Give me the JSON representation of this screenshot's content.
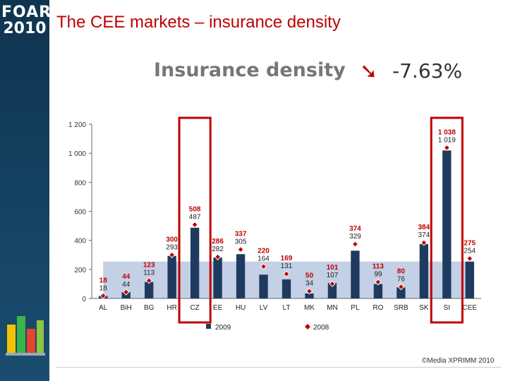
{
  "slide": {
    "title": "The CEE markets – insurance density",
    "subtitle": "Insurance density",
    "change": "-7.63%",
    "arrow_icon": "arrow-down-right-icon",
    "logo_top": "FOAR",
    "logo_bottom": "2010",
    "copyright": "©Media XPRIMM 2010"
  },
  "chart_data": {
    "type": "bar",
    "title": "",
    "xlabel": "",
    "ylabel": "",
    "ylim": [
      0,
      1200
    ],
    "yticks": [
      0,
      200,
      400,
      600,
      800,
      1000,
      1200
    ],
    "ytick_labels": [
      "0",
      "200",
      "400",
      "600",
      "800",
      "1 000",
      "1 200"
    ],
    "legend_position": "bottom",
    "categories": [
      "AL",
      "BiH",
      "BG",
      "HR",
      "CZ",
      "EE",
      "HU",
      "LV",
      "LT",
      "MK",
      "MN",
      "PL",
      "RO",
      "SRB",
      "SK",
      "SI",
      "CEE"
    ],
    "series": [
      {
        "name": "2009",
        "type": "bar",
        "color": "#1f3a5f",
        "values": [
          18,
          44,
          113,
          293,
          487,
          282,
          305,
          164,
          131,
          34,
          107,
          329,
          99,
          76,
          374,
          1019,
          254
        ],
        "labels": [
          "18",
          "44",
          "113",
          "293",
          "487",
          "282",
          "305",
          "164",
          "131",
          "34",
          "107",
          "329",
          "99",
          "76",
          "374",
          "1 019",
          "254"
        ]
      },
      {
        "name": "2008",
        "type": "marker",
        "color": "#c00000",
        "values": [
          18,
          44,
          123,
          300,
          508,
          286,
          337,
          220,
          169,
          50,
          101,
          374,
          113,
          80,
          384,
          1038,
          275
        ],
        "labels": [
          "18",
          "44",
          "123",
          "300",
          "508",
          "286",
          "337",
          "220",
          "169",
          "50",
          "101",
          "374",
          "113",
          "80",
          "384",
          "1 038",
          "275"
        ]
      }
    ],
    "highlighted_categories": [
      "CZ",
      "SI"
    ],
    "average_band_value": 254
  }
}
